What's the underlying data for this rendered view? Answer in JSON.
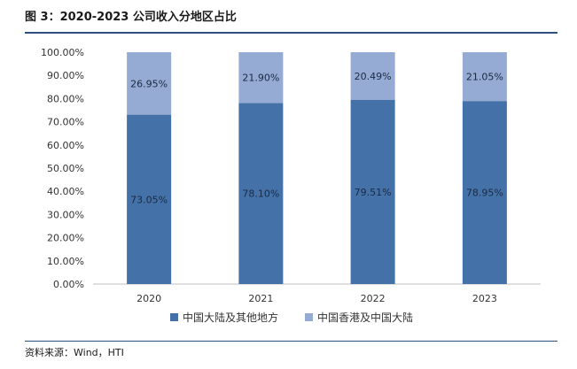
{
  "figure": {
    "title": "图 3：2020-2023 公司收入分地区占比",
    "source": "资料来源：Wind，HTI"
  },
  "colors": {
    "series_1": "#4472a8",
    "series_2": "#95abd4",
    "rule": "#2f4f7f"
  },
  "chart_data": {
    "type": "bar",
    "stacked": true,
    "title": "",
    "xlabel": "",
    "ylabel": "",
    "categories": [
      "2020",
      "2021",
      "2022",
      "2023"
    ],
    "series": [
      {
        "name": "中国大陆及其他地方",
        "values": [
          73.05,
          78.1,
          79.51,
          78.95
        ],
        "labels": [
          "73.05%",
          "78.10%",
          "79.51%",
          "78.95%"
        ]
      },
      {
        "name": "中国香港及中国大陆",
        "values": [
          26.95,
          21.9,
          20.49,
          21.05
        ],
        "labels": [
          "26.95%",
          "21.90%",
          "20.49%",
          "21.05%"
        ]
      }
    ],
    "ylim": [
      0,
      100
    ],
    "yticks": [
      "0.00%",
      "10.00%",
      "20.00%",
      "30.00%",
      "40.00%",
      "50.00%",
      "60.00%",
      "70.00%",
      "80.00%",
      "90.00%",
      "100.00%"
    ],
    "grid": false,
    "legend": "bottom"
  }
}
